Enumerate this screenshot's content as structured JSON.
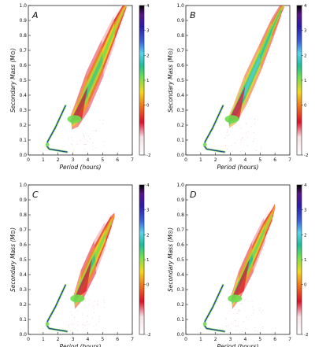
{
  "chart_data": [
    {
      "type": "heatmap",
      "panel": "A",
      "xlabel": "Period (hours)",
      "ylabel": "Secondary Mass (M⊙)",
      "xlim": [
        0,
        7
      ],
      "ylim": [
        0.0,
        1.0
      ],
      "x_ticks": [
        "0",
        "1",
        "2",
        "3",
        "4",
        "5",
        "6",
        "7"
      ],
      "y_ticks": [
        "0.0",
        "0.1",
        "0.2",
        "0.3",
        "0.4",
        "0.5",
        "0.6",
        "0.7",
        "0.8",
        "0.9",
        "1.0"
      ],
      "colorbar": {
        "range": [
          -2,
          4
        ],
        "ticks": [
          "-2",
          "0",
          "1",
          "2",
          "3",
          "4"
        ]
      },
      "upper_branch": {
        "spine": [
          [
            2.9,
            0.22
          ],
          [
            3.3,
            0.28
          ],
          [
            4.0,
            0.43
          ],
          [
            5.0,
            0.65
          ],
          [
            5.8,
            0.84
          ],
          [
            6.4,
            0.97
          ],
          [
            6.6,
            1.0
          ]
        ],
        "width": [
          0.05,
          0.09,
          0.13,
          0.12,
          0.09,
          0.05,
          0.02
        ],
        "intensity": [
          1.2,
          1.0,
          0.8,
          0.5,
          0.2,
          0.0,
          -0.3
        ]
      },
      "lower_branch": [
        [
          2.5,
          0.33
        ],
        [
          1.8,
          0.18
        ],
        [
          1.3,
          0.09
        ],
        [
          1.25,
          0.06
        ],
        [
          1.4,
          0.04
        ],
        [
          2.0,
          0.03
        ],
        [
          2.6,
          0.02
        ]
      ]
    },
    {
      "type": "heatmap",
      "panel": "B",
      "xlabel": "Period (hours)",
      "ylabel": "Secondary Mass (M⊙)",
      "xlim": [
        0,
        7
      ],
      "ylim": [
        0.0,
        1.0
      ],
      "x_ticks": [
        "0",
        "1",
        "2",
        "3",
        "4",
        "5",
        "6",
        "7"
      ],
      "y_ticks": [
        "0.0",
        "0.1",
        "0.2",
        "0.3",
        "0.4",
        "0.5",
        "0.6",
        "0.7",
        "0.8",
        "0.9",
        "1.0"
      ],
      "colorbar": {
        "range": [
          -2,
          4
        ],
        "ticks": [
          "-2",
          "0",
          "1",
          "2",
          "3",
          "4"
        ]
      },
      "upper_branch": {
        "spine": [
          [
            2.9,
            0.22
          ],
          [
            3.3,
            0.28
          ],
          [
            4.0,
            0.43
          ],
          [
            5.0,
            0.65
          ],
          [
            5.8,
            0.84
          ],
          [
            6.4,
            0.97
          ],
          [
            6.6,
            1.0
          ]
        ],
        "width": [
          0.04,
          0.07,
          0.1,
          0.09,
          0.07,
          0.04,
          0.02
        ],
        "intensity": [
          1.8,
          1.6,
          1.4,
          1.1,
          0.8,
          0.3,
          0.0
        ]
      },
      "lower_branch": [
        [
          2.5,
          0.33
        ],
        [
          1.8,
          0.18
        ],
        [
          1.3,
          0.09
        ],
        [
          1.25,
          0.06
        ],
        [
          1.4,
          0.04
        ],
        [
          2.0,
          0.03
        ],
        [
          2.6,
          0.02
        ]
      ]
    },
    {
      "type": "heatmap",
      "panel": "C",
      "xlabel": "Period (hours)",
      "ylabel": "Secondary Mass (M⊙)",
      "xlim": [
        0,
        7
      ],
      "ylim": [
        0.0,
        1.0
      ],
      "x_ticks": [
        "0",
        "1",
        "2",
        "3",
        "4",
        "5",
        "6",
        "7"
      ],
      "y_ticks": [
        "0.0",
        "0.1",
        "0.2",
        "0.3",
        "0.4",
        "0.5",
        "0.6",
        "0.7",
        "0.8",
        "0.9",
        "1.0"
      ],
      "colorbar": {
        "range": [
          -2,
          4
        ],
        "ticks": [
          "-2",
          "0",
          "1",
          "2",
          "3",
          "4"
        ]
      },
      "upper_branch": {
        "spine": [
          [
            3.1,
            0.22
          ],
          [
            3.6,
            0.33
          ],
          [
            4.5,
            0.52
          ],
          [
            5.2,
            0.67
          ],
          [
            5.6,
            0.76
          ],
          [
            5.8,
            0.8
          ]
        ],
        "width": [
          0.05,
          0.1,
          0.11,
          0.08,
          0.05,
          0.02
        ],
        "intensity": [
          1.2,
          0.9,
          0.5,
          0.2,
          -0.2,
          -0.6
        ]
      },
      "lower_branch": [
        [
          2.5,
          0.33
        ],
        [
          1.8,
          0.18
        ],
        [
          1.3,
          0.09
        ],
        [
          1.25,
          0.06
        ],
        [
          1.4,
          0.04
        ],
        [
          2.0,
          0.03
        ],
        [
          2.6,
          0.02
        ]
      ]
    },
    {
      "type": "heatmap",
      "panel": "D",
      "xlabel": "Period (hours)",
      "ylabel": "Secondary Mass (M⊙)",
      "xlim": [
        0,
        7
      ],
      "ylim": [
        0.0,
        1.0
      ],
      "x_ticks": [
        "0",
        "1",
        "2",
        "3",
        "4",
        "5",
        "6",
        "7"
      ],
      "y_ticks": [
        "0.0",
        "0.1",
        "0.2",
        "0.3",
        "0.4",
        "0.5",
        "0.6",
        "0.7",
        "0.8",
        "0.9",
        "1.0"
      ],
      "colorbar": {
        "range": [
          -2,
          4
        ],
        "ticks": [
          "-2",
          "0",
          "1",
          "2",
          "3",
          "4"
        ]
      },
      "upper_branch": {
        "spine": [
          [
            3.1,
            0.22
          ],
          [
            3.6,
            0.33
          ],
          [
            4.5,
            0.52
          ],
          [
            5.3,
            0.7
          ],
          [
            5.8,
            0.8
          ],
          [
            6.0,
            0.86
          ]
        ],
        "width": [
          0.05,
          0.09,
          0.1,
          0.08,
          0.05,
          0.02
        ],
        "intensity": [
          1.3,
          1.0,
          0.6,
          0.3,
          -0.1,
          -0.5
        ]
      },
      "lower_branch": [
        [
          2.5,
          0.33
        ],
        [
          1.8,
          0.18
        ],
        [
          1.3,
          0.09
        ],
        [
          1.25,
          0.06
        ],
        [
          1.4,
          0.04
        ],
        [
          2.0,
          0.03
        ],
        [
          2.6,
          0.02
        ]
      ]
    }
  ]
}
